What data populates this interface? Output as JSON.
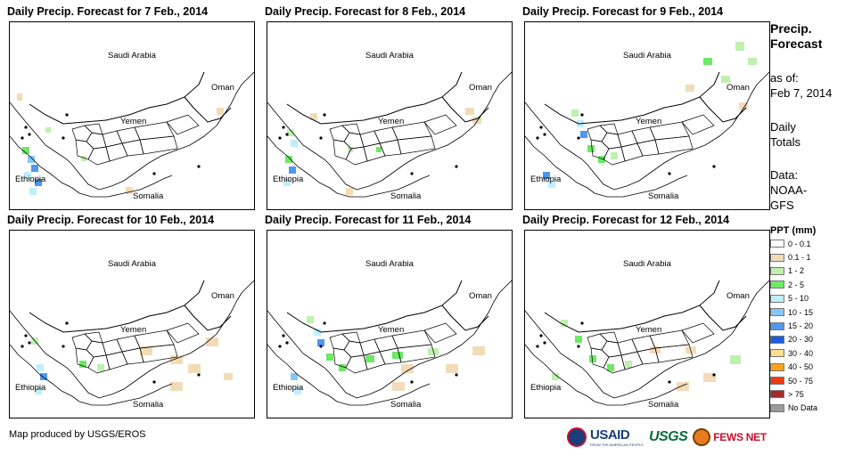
{
  "panels": [
    {
      "title": "Daily Precip. Forecast for 7 Feb., 2014"
    },
    {
      "title": "Daily Precip. Forecast for 8 Feb., 2014"
    },
    {
      "title": "Daily Precip. Forecast for 9 Feb., 2014"
    },
    {
      "title": "Daily Precip. Forecast for 10 Feb., 2014"
    },
    {
      "title": "Daily Precip. Forecast for 11 Feb., 2014"
    },
    {
      "title": "Daily Precip. Forecast for 12 Feb., 2014"
    }
  ],
  "map_labels": {
    "saudi": "Saudi Arabia",
    "oman": "Oman",
    "yemen": "Yemen",
    "ethiopia": "Ethiopia",
    "somalia": "Somalia"
  },
  "legend": {
    "heading_line1": "Precip.",
    "heading_line2": "Forecast",
    "asof_line1": "as of:",
    "asof_line2": "Feb 7, 2014",
    "totals_line1": "Daily",
    "totals_line2": "Totals",
    "data_line1": "Data:",
    "data_line2": "NOAA-",
    "data_line3": "GFS",
    "ppt_title": "PPT (mm)",
    "classes": [
      {
        "label": "0 - 0.1",
        "color": "#ffffff"
      },
      {
        "label": "0.1 - 1",
        "color": "#f2dcb8"
      },
      {
        "label": "1 - 2",
        "color": "#bff0b0"
      },
      {
        "label": "2 - 5",
        "color": "#6ee866"
      },
      {
        "label": "5 - 10",
        "color": "#bfeefc"
      },
      {
        "label": "10 - 15",
        "color": "#84c8f5"
      },
      {
        "label": "15 - 20",
        "color": "#4f97f0"
      },
      {
        "label": "20 - 30",
        "color": "#1d5ee0"
      },
      {
        "label": "30 - 40",
        "color": "#fde08a"
      },
      {
        "label": "40 - 50",
        "color": "#f8a31b"
      },
      {
        "label": "50 - 75",
        "color": "#ee3b15"
      },
      {
        "label": "> 75",
        "color": "#a52a2a"
      },
      {
        "label": "No Data",
        "color": "#9a9a9a"
      }
    ]
  },
  "footer": {
    "credit": "Map produced by USGS/EROS",
    "usaid": "USAID",
    "usaid_tagline": "FROM THE AMERICAN PEOPLE",
    "usgs": "USGS",
    "fews": "FEWS NET"
  }
}
